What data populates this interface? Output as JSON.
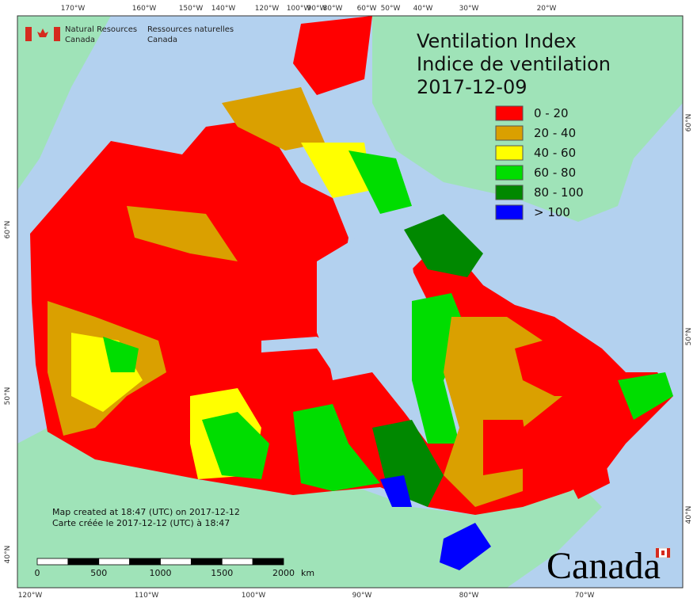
{
  "header": {
    "title_en": "Ventilation Index",
    "title_fr": "Indice de ventilation",
    "date": "2017-12-09"
  },
  "logo": {
    "en": [
      "Natural Resources",
      "Canada"
    ],
    "fr": [
      "Ressources naturelles",
      "Canada"
    ]
  },
  "legend": [
    {
      "label": "0 - 20",
      "color": "#ff0000"
    },
    {
      "label": "20 - 40",
      "color": "#daa000"
    },
    {
      "label": "40 - 60",
      "color": "#ffff00"
    },
    {
      "label": "60 - 80",
      "color": "#00dd00"
    },
    {
      "label": "80 - 100",
      "color": "#008800"
    },
    {
      "label": "> 100",
      "color": "#0000ff"
    }
  ],
  "notes": [
    "Map created at 18:47 (UTC) on 2017-12-12",
    "Carte créée le 2017-12-12 (UTC) à 18:47"
  ],
  "scale_bar": {
    "labels": [
      "0",
      "500",
      "1000",
      "1500",
      "2000"
    ],
    "unit": "km"
  },
  "graticule": {
    "top": [
      "170°W",
      "160°W",
      "150°W",
      "140°W",
      "120°W",
      "100°W",
      "90°W",
      "80°W",
      "60°W",
      "50°W",
      "40°W",
      "30°W",
      "20°W"
    ],
    "bottom": [
      "120°W",
      "110°W",
      "100°W",
      "90°W",
      "80°W",
      "70°W"
    ],
    "left": [
      "60°N",
      "50°N",
      "40°N"
    ],
    "right": [
      "60°N",
      "50°N",
      "40°N"
    ]
  },
  "wordmark": "Canada"
}
